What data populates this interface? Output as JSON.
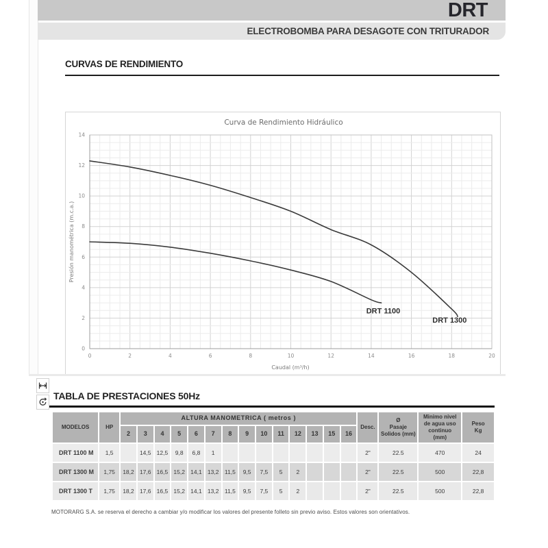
{
  "page": {
    "title": "DRT",
    "subtitle": "ELECTROBOMBA PARA DESAGOTE CON TRITURADOR",
    "curves_heading": "CURVAS DE RENDIMIENTO",
    "table_heading": "TABLA DE PRESTACIONES 50Hz",
    "footer_note": "MOTORARG S.A. se reserva el derecho a cambiar y/o modificar los valores del presente folleto sin previo aviso. Estos valores son orientativos."
  },
  "side_icons": [
    {
      "name": "dimension-icon"
    },
    {
      "name": "pump-icon"
    }
  ],
  "colors": {
    "header_band": "#c8c8c8",
    "subheader_band": "#e4e4e4",
    "table_header_bg": "#b3b3b3",
    "row_light": "#ececec",
    "row_dark": "#d7d7d7",
    "curve": "#3a3a3a",
    "grid_minor": "#ececec",
    "grid_major": "#d2d2d2"
  },
  "chart_data": {
    "type": "line",
    "title": "Curva de Rendimiento Hidráulico",
    "xlabel": "Caudal (m³/h)",
    "ylabel": "Presión manométrica (m.c.a.)",
    "xlim": [
      0,
      20
    ],
    "ylim": [
      0,
      14
    ],
    "x_ticks": [
      0,
      2,
      4,
      6,
      8,
      10,
      12,
      14,
      16,
      18,
      20
    ],
    "y_ticks": [
      0,
      2,
      4,
      6,
      8,
      10,
      12,
      14
    ],
    "grid": {
      "major_step": 2,
      "minor_step": 0.5,
      "visible": true
    },
    "legend_position": "inline-labels",
    "series": [
      {
        "name": "DRT 1300",
        "points": [
          [
            0,
            12.3
          ],
          [
            2,
            11.9
          ],
          [
            4,
            11.35
          ],
          [
            6,
            10.7
          ],
          [
            8,
            9.9
          ],
          [
            10,
            9.0
          ],
          [
            12,
            7.8
          ],
          [
            14,
            6.8
          ],
          [
            16,
            5.0
          ],
          [
            18,
            2.6
          ],
          [
            18.3,
            2.1
          ]
        ],
        "label_pos": [
          17.9,
          1.7
        ]
      },
      {
        "name": "DRT 1100",
        "points": [
          [
            0,
            7.0
          ],
          [
            2,
            6.9
          ],
          [
            4,
            6.65
          ],
          [
            6,
            6.25
          ],
          [
            8,
            5.75
          ],
          [
            10,
            5.15
          ],
          [
            12,
            4.4
          ],
          [
            14,
            3.2
          ],
          [
            14.5,
            3.0
          ]
        ],
        "label_pos": [
          14.6,
          2.3
        ]
      }
    ]
  },
  "table": {
    "headers": {
      "modelos": "MODELOS",
      "hp": "HP",
      "altura_group": "ALTURA  MANOMETRICA  ( metros )",
      "altura_cols": [
        "2",
        "3",
        "4",
        "5",
        "6",
        "7",
        "8",
        "9",
        "10",
        "11",
        "12",
        "13",
        "15",
        "16"
      ],
      "desc": "Desc.",
      "pasaje": "Ø\nPasaje\nSolidos (mm)",
      "minimo": "Minimo nivel\nde agua uso\ncontinuo\n(mm)",
      "peso": "Peso\nKg"
    },
    "rows": [
      {
        "model": "DRT 1100 M",
        "hp": "1,5",
        "alturas": [
          "",
          "14,5",
          "12,5",
          "9,8",
          "6,8",
          "1",
          "",
          "",
          "",
          "",
          "",
          "",
          "",
          ""
        ],
        "desc": "2\"",
        "pasaje": "22.5",
        "minimo": "470",
        "peso": "24"
      },
      {
        "model": "DRT 1300 M",
        "hp": "1,75",
        "alturas": [
          "18,2",
          "17,6",
          "16,5",
          "15,2",
          "14,1",
          "13,2",
          "11,5",
          "9,5",
          "7,5",
          "5",
          "2",
          "",
          "",
          ""
        ],
        "desc": "2\"",
        "pasaje": "22.5",
        "minimo": "500",
        "peso": "22,8"
      },
      {
        "model": "DRT 1300 T",
        "hp": "1,75",
        "alturas": [
          "18,2",
          "17,6",
          "16,5",
          "15,2",
          "14,1",
          "13,2",
          "11,5",
          "9,5",
          "7,5",
          "5",
          "2",
          "",
          "",
          ""
        ],
        "desc": "2\"",
        "pasaje": "22.5",
        "minimo": "500",
        "peso": "22,8"
      }
    ]
  }
}
